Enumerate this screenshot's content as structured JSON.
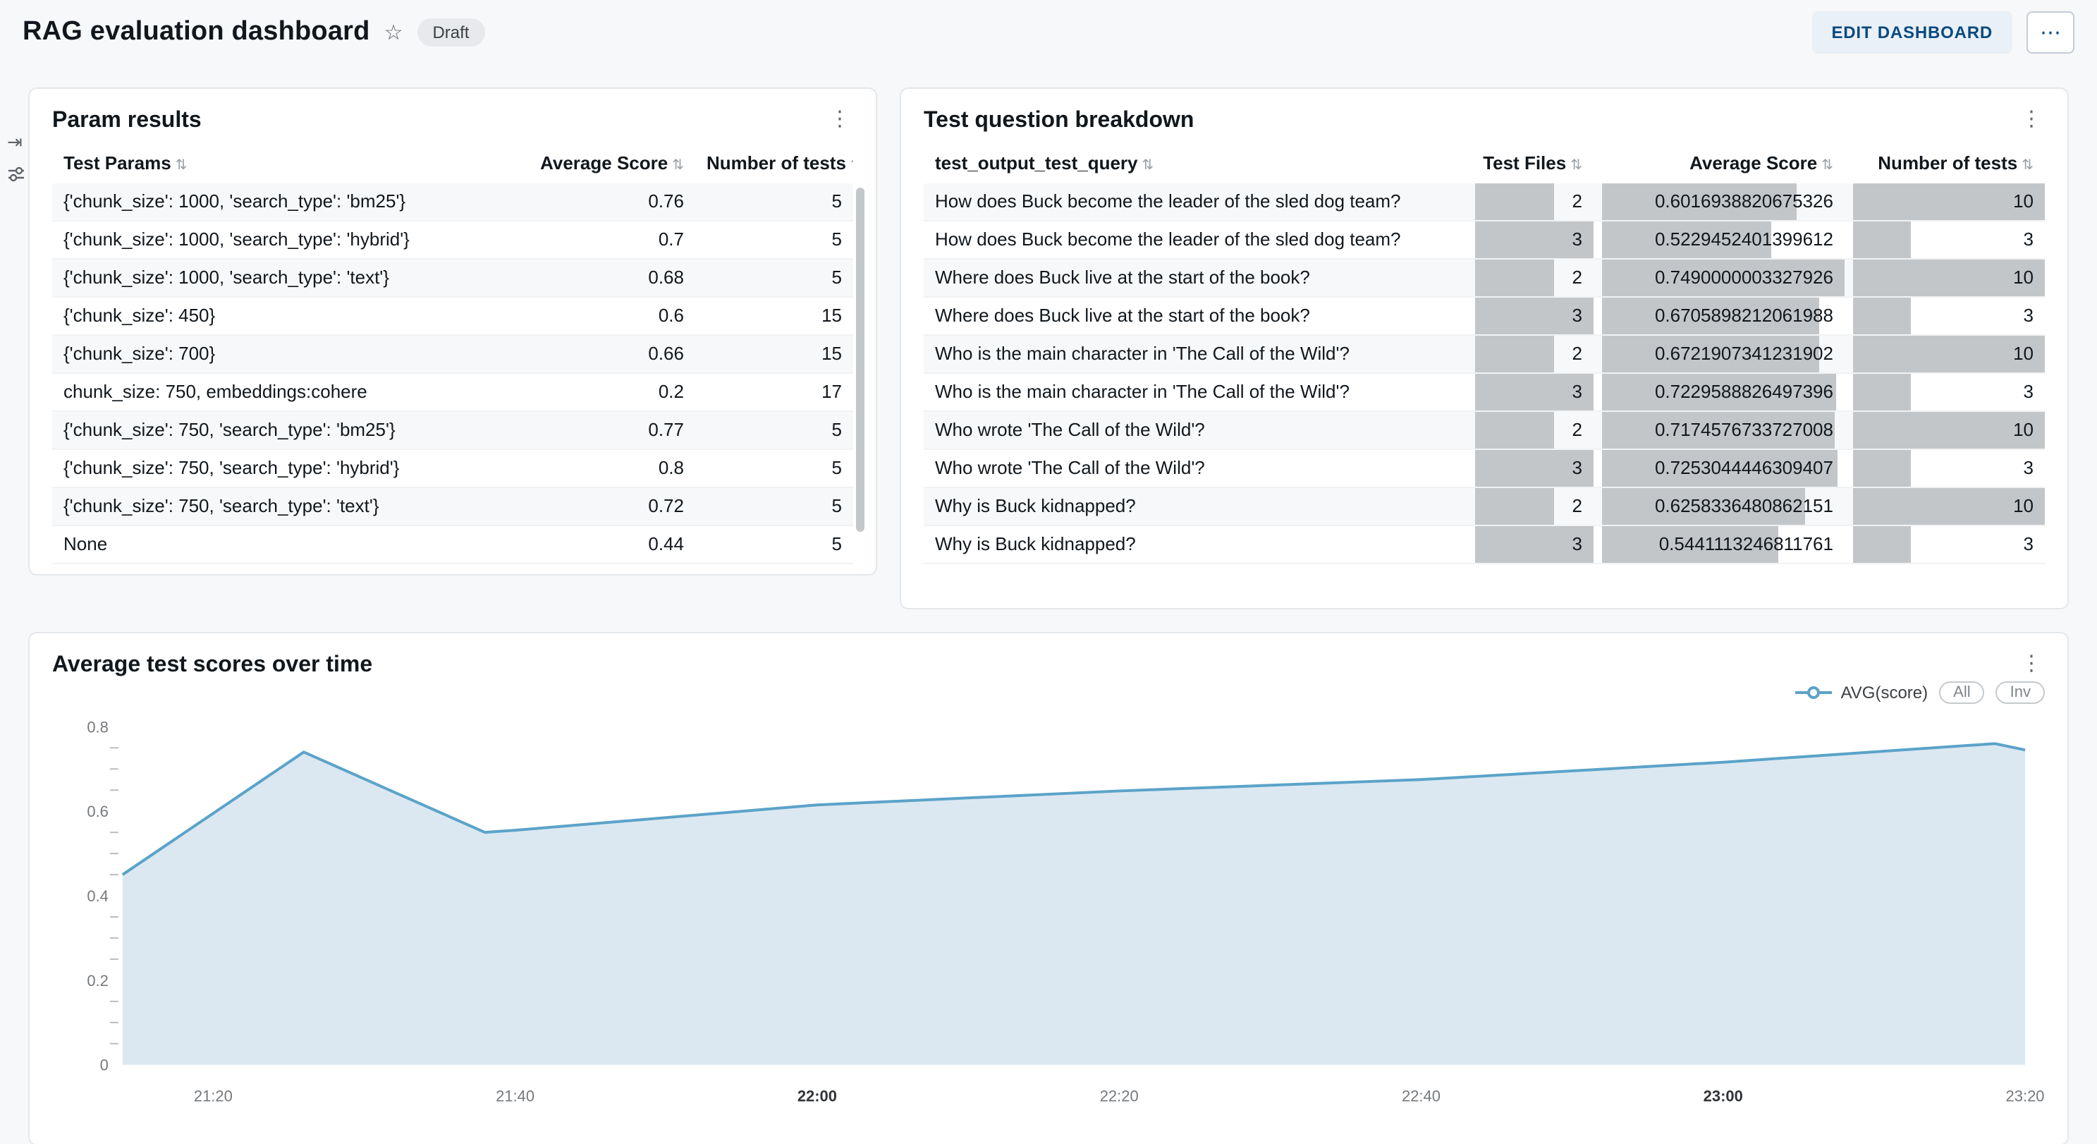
{
  "header": {
    "title": "RAG evaluation dashboard",
    "badge": "Draft",
    "edit_button": "EDIT DASHBOARD"
  },
  "icons": {
    "star": "☆",
    "header_menu": "⋯",
    "card_menu": "⋮",
    "sort": "⇅",
    "open_panel": "⇥"
  },
  "param_results": {
    "title": "Param results",
    "columns": [
      "Test Params",
      "Average Score",
      "Number of tests"
    ],
    "rows": [
      [
        "{'chunk_size': 1000, 'search_type': 'bm25'}",
        "0.76",
        "5"
      ],
      [
        "{'chunk_size': 1000, 'search_type': 'hybrid'}",
        "0.7",
        "5"
      ],
      [
        "{'chunk_size': 1000, 'search_type': 'text'}",
        "0.68",
        "5"
      ],
      [
        "{'chunk_size': 450}",
        "0.6",
        "15"
      ],
      [
        "{'chunk_size': 700}",
        "0.66",
        "15"
      ],
      [
        "chunk_size: 750, embeddings:cohere",
        "0.2",
        "17"
      ],
      [
        "{'chunk_size': 750, 'search_type': 'bm25'}",
        "0.77",
        "5"
      ],
      [
        "{'chunk_size': 750, 'search_type': 'hybrid'}",
        "0.8",
        "5"
      ],
      [
        "{'chunk_size': 750, 'search_type': 'text'}",
        "0.72",
        "5"
      ],
      [
        "None",
        "0.44",
        "5"
      ]
    ]
  },
  "question_breakdown": {
    "title": "Test question breakdown",
    "columns": [
      "test_output_test_query",
      "Test Files",
      "Average Score",
      "Number of tests"
    ],
    "max": {
      "files": 3,
      "score": 0.7490000003327926,
      "tests": 10
    },
    "rows": [
      {
        "query": "How does Buck become the leader of the sled dog team?",
        "files": 2,
        "score": "0.6016938820675326",
        "tests": 10
      },
      {
        "query": "How does Buck become the leader of the sled dog team?",
        "files": 3,
        "score": "0.5229452401399612",
        "tests": 3
      },
      {
        "query": "Where does Buck live at the start of the book?",
        "files": 2,
        "score": "0.7490000003327926",
        "tests": 10
      },
      {
        "query": "Where does Buck live at the start of the book?",
        "files": 3,
        "score": "0.6705898212061988",
        "tests": 3
      },
      {
        "query": "Who is the main character in 'The Call of the Wild'?",
        "files": 2,
        "score": "0.6721907341231902",
        "tests": 10
      },
      {
        "query": "Who is the main character in 'The Call of the Wild'?",
        "files": 3,
        "score": "0.7229588826497396",
        "tests": 3
      },
      {
        "query": "Who wrote 'The Call of the Wild'?",
        "files": 2,
        "score": "0.7174576733727008",
        "tests": 10
      },
      {
        "query": "Who wrote 'The Call of the Wild'?",
        "files": 3,
        "score": "0.7253044446309407",
        "tests": 3
      },
      {
        "query": "Why is Buck kidnapped?",
        "files": 2,
        "score": "0.6258336480862151",
        "tests": 10
      },
      {
        "query": "Why is Buck kidnapped?",
        "files": 3,
        "score": "0.5441113246811761",
        "tests": 3
      }
    ]
  },
  "chart_data": {
    "type": "area",
    "title": "Average test scores over time",
    "legend": "AVG(score)",
    "buttons": [
      "All",
      "Inv"
    ],
    "x_range": [
      "21:14",
      "23:20"
    ],
    "ylim": [
      0,
      0.8
    ],
    "yticks": [
      0,
      0.2,
      0.4,
      0.6,
      0.8
    ],
    "minor_step": 0.05,
    "xticks": [
      {
        "label": "21:20",
        "bold": false
      },
      {
        "label": "21:40",
        "bold": false
      },
      {
        "label": "22:00",
        "bold": true
      },
      {
        "label": "22:20",
        "bold": false
      },
      {
        "label": "22:40",
        "bold": false
      },
      {
        "label": "23:00",
        "bold": true
      },
      {
        "label": "23:20",
        "bold": false
      }
    ],
    "points": [
      [
        "21:14",
        0.45
      ],
      [
        "21:26",
        0.74
      ],
      [
        "21:38",
        0.55
      ],
      [
        "21:40",
        0.555
      ],
      [
        "22:00",
        0.615
      ],
      [
        "22:20",
        0.648
      ],
      [
        "22:40",
        0.675
      ],
      [
        "23:00",
        0.716
      ],
      [
        "23:18",
        0.76
      ],
      [
        "23:20",
        0.745
      ]
    ],
    "colors": {
      "line": "#5ba3c9",
      "fill": "#dbe8f2"
    }
  }
}
